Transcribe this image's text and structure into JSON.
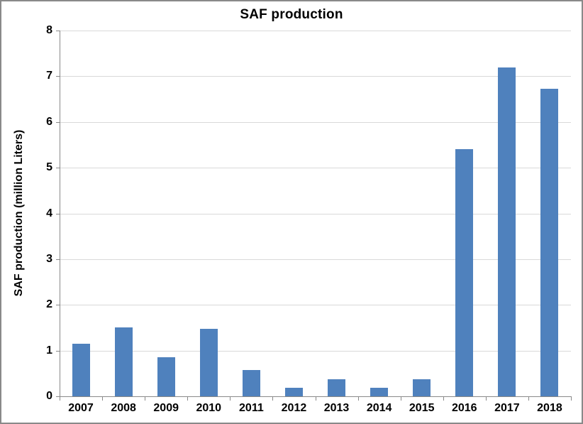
{
  "chart_data": {
    "type": "bar",
    "title": "SAF production",
    "ylabel": "SAF production (million Liters)",
    "xlabel": "",
    "categories": [
      "2007",
      "2008",
      "2009",
      "2010",
      "2011",
      "2012",
      "2013",
      "2014",
      "2015",
      "2016",
      "2017",
      "2018"
    ],
    "values": [
      1.15,
      1.5,
      0.85,
      1.47,
      0.57,
      0.19,
      0.38,
      0.19,
      0.38,
      5.41,
      7.2,
      6.72
    ],
    "series_name": "SAF production",
    "ylim": [
      0,
      8
    ],
    "yticks": [
      0,
      1,
      2,
      3,
      4,
      5,
      6,
      7,
      8
    ],
    "grid": true,
    "legend": false,
    "bar_color": "#4F81BD",
    "gridline_color": "#D9D9D9",
    "axis_color": "#898989",
    "border_color": "#898989",
    "text_color": "#000000",
    "background_color": "#FFFFFF"
  }
}
